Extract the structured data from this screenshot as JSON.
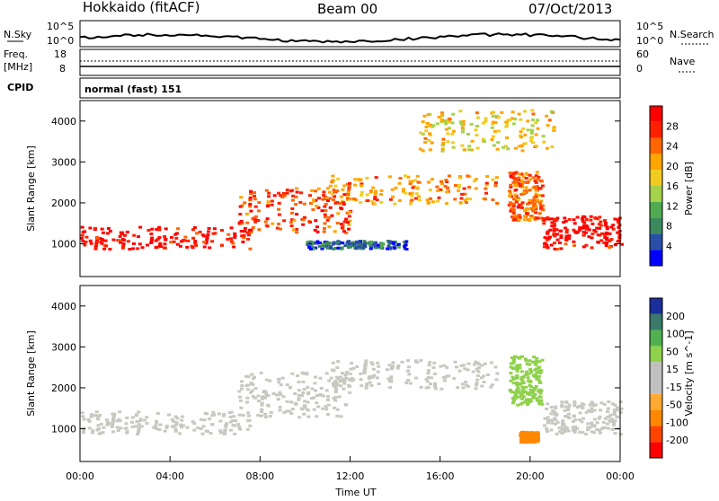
{
  "header": {
    "title": "Hokkaido (fitACF)",
    "beam": "Beam 00",
    "date": "07/Oct/2013"
  },
  "summary_panel": {
    "left_label": "N.Sky",
    "right_label": "N.Search",
    "left_ticks": [
      "10^5",
      "10^0"
    ],
    "right_ticks": [
      "10^5",
      "10^0"
    ]
  },
  "freq_panel": {
    "left_label_1": "Freq.",
    "left_label_2": "[MHz]",
    "right_label": "Nave",
    "left_ticks": [
      "18",
      "8"
    ],
    "right_ticks": [
      "60",
      "0"
    ]
  },
  "cpid_panel": {
    "label": "CPID",
    "text": "normal (fast) 151"
  },
  "colors": {
    "power": [
      "#0000ff",
      "#2a4fa8",
      "#3b8a5e",
      "#50aa50",
      "#a5d24a",
      "#f0cc20",
      "#ffa500",
      "#ff6600",
      "#ff2000",
      "#ff0000"
    ],
    "velocity": [
      "#ff0000",
      "#ff4400",
      "#ff8800",
      "#ffaa33",
      "#c0c0c0",
      "#c0c0c0",
      "#8ed14a",
      "#50b050",
      "#3a7a6a",
      "#1a2f9a"
    ],
    "velocity_low_mag": "#c8c8c0"
  },
  "chart_data": [
    {
      "type": "heatmap",
      "title": "Power",
      "ylabel": "Slant Range [km]",
      "ylim": [
        200,
        4500
      ],
      "xlim": [
        "00:00",
        "24:00"
      ],
      "y_ticks": [
        "1000",
        "2000",
        "3000",
        "4000"
      ],
      "colorbar_label": "Power [dB]",
      "colorbar_ticks": [
        "28",
        "24",
        "20",
        "16",
        "12",
        "8",
        "4"
      ],
      "colorbar_range": [
        0,
        32
      ],
      "bands": [
        {
          "name": "main scatter (low range)",
          "x": [
            0,
            7.5
          ],
          "range_km": [
            900,
            1450
          ],
          "value_db": 30
        },
        {
          "name": "rising band",
          "x": [
            7,
            12
          ],
          "range_km": [
            1300,
            2400
          ],
          "value_db": 26
        },
        {
          "name": "upper band",
          "x": [
            11,
            18.5
          ],
          "range_km": [
            2000,
            2700
          ],
          "value_db": 22
        },
        {
          "name": "descending band",
          "x": [
            19,
            20.5
          ],
          "range_km": [
            1600,
            2800
          ],
          "value_db": 24
        },
        {
          "name": "evening scatter",
          "x": [
            20.5,
            24
          ],
          "range_km": [
            900,
            1700
          ],
          "value_db": 30
        },
        {
          "name": "weak echoes",
          "x": [
            10,
            14.5
          ],
          "range_km": [
            900,
            1100
          ],
          "value_db": 6
        },
        {
          "name": "far range echoes",
          "x": [
            15,
            21
          ],
          "range_km": [
            3300,
            4300
          ],
          "value_db": 18
        }
      ]
    },
    {
      "type": "heatmap",
      "title": "Velocity",
      "ylabel": "Slant Range [km]",
      "xlabel": "Time UT",
      "ylim": [
        200,
        4500
      ],
      "xlim": [
        "00:00",
        "24:00"
      ],
      "x_ticks": [
        "00:00",
        "04:00",
        "08:00",
        "12:00",
        "16:00",
        "20:00",
        "00:00"
      ],
      "y_ticks": [
        "1000",
        "2000",
        "3000",
        "4000"
      ],
      "colorbar_label": "Velocity [m s^-1]",
      "colorbar_ticks": [
        "200",
        "100",
        "50",
        "15",
        "-15",
        "-50",
        "-100",
        "-200"
      ],
      "bands": [
        {
          "name": "ground scatter (low range)",
          "x": [
            0,
            7.5
          ],
          "range_km": [
            900,
            1450
          ],
          "value_ms": 0
        },
        {
          "name": "rising band",
          "x": [
            7,
            12
          ],
          "range_km": [
            1300,
            2400
          ],
          "value_ms": 0
        },
        {
          "name": "upper band",
          "x": [
            11,
            18.5
          ],
          "range_km": [
            2000,
            2700
          ],
          "value_ms": 0
        },
        {
          "name": "descending band",
          "x": [
            19,
            20.5
          ],
          "range_km": [
            1600,
            2800
          ],
          "value_ms": 40
        },
        {
          "name": "evening scatter",
          "x": [
            20.5,
            24
          ],
          "range_km": [
            900,
            1700
          ],
          "value_ms": 0
        },
        {
          "name": "orange patch",
          "x": [
            19.5,
            20.3
          ],
          "range_km": [
            700,
            950
          ],
          "value_ms": -60
        }
      ]
    }
  ]
}
